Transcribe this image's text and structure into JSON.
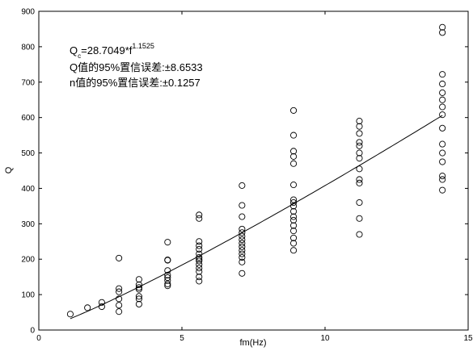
{
  "chart_data": {
    "type": "scatter",
    "title": "",
    "xlabel": "fm(Hz)",
    "ylabel": "Q",
    "xlim": [
      0,
      15
    ],
    "ylim": [
      0,
      900
    ],
    "xticks": [
      0,
      5,
      10,
      15
    ],
    "yticks": [
      0,
      100,
      200,
      300,
      400,
      500,
      600,
      700,
      800,
      900
    ],
    "grid": false,
    "legend": "none",
    "annotations": {
      "equation_prefix": "Q",
      "equation_sub": "c",
      "equation_body": "=28.7049*f",
      "equation_exponent": "1.1525",
      "q_conf": "Q值的95%置信误差:±8.6533",
      "n_conf": "n值的95%置信误差:±0.1257"
    },
    "fit": {
      "formula": "Q=28.7049*f^1.1525",
      "a": 28.7049,
      "n": 1.1525,
      "x_range": [
        1.1,
        14.1
      ]
    },
    "series": [
      {
        "type": "scatter",
        "points": [
          [
            1.1,
            45
          ],
          [
            1.7,
            63
          ],
          [
            2.2,
            66
          ],
          [
            2.2,
            78
          ],
          [
            2.8,
            203
          ],
          [
            2.8,
            117
          ],
          [
            2.8,
            108
          ],
          [
            2.8,
            88
          ],
          [
            2.8,
            70
          ],
          [
            2.8,
            52
          ],
          [
            3.5,
            143
          ],
          [
            3.5,
            128
          ],
          [
            3.5,
            120
          ],
          [
            3.5,
            115
          ],
          [
            3.5,
            95
          ],
          [
            3.5,
            88
          ],
          [
            3.5,
            73
          ],
          [
            4.5,
            248
          ],
          [
            4.5,
            198
          ],
          [
            4.5,
            197
          ],
          [
            4.5,
            168
          ],
          [
            4.5,
            155
          ],
          [
            4.5,
            148
          ],
          [
            4.5,
            140
          ],
          [
            4.5,
            130
          ],
          [
            4.5,
            125
          ],
          [
            5.6,
            325
          ],
          [
            5.6,
            315
          ],
          [
            5.6,
            250
          ],
          [
            5.6,
            238
          ],
          [
            5.6,
            228
          ],
          [
            5.6,
            215
          ],
          [
            5.6,
            205
          ],
          [
            5.6,
            200
          ],
          [
            5.6,
            195
          ],
          [
            5.6,
            185
          ],
          [
            5.6,
            175
          ],
          [
            5.6,
            165
          ],
          [
            5.6,
            150
          ],
          [
            5.6,
            138
          ],
          [
            7.1,
            408
          ],
          [
            7.1,
            352
          ],
          [
            7.1,
            320
          ],
          [
            7.1,
            285
          ],
          [
            7.1,
            275
          ],
          [
            7.1,
            265
          ],
          [
            7.1,
            255
          ],
          [
            7.1,
            245
          ],
          [
            7.1,
            235
          ],
          [
            7.1,
            225
          ],
          [
            7.1,
            215
          ],
          [
            7.1,
            205
          ],
          [
            7.1,
            192
          ],
          [
            7.1,
            160
          ],
          [
            8.9,
            620
          ],
          [
            8.9,
            550
          ],
          [
            8.9,
            505
          ],
          [
            8.9,
            490
          ],
          [
            8.9,
            470
          ],
          [
            8.9,
            410
          ],
          [
            8.9,
            368
          ],
          [
            8.9,
            360
          ],
          [
            8.9,
            350
          ],
          [
            8.9,
            335
          ],
          [
            8.9,
            320
          ],
          [
            8.9,
            310
          ],
          [
            8.9,
            295
          ],
          [
            8.9,
            280
          ],
          [
            8.9,
            260
          ],
          [
            8.9,
            245
          ],
          [
            8.9,
            225
          ],
          [
            11.2,
            590
          ],
          [
            11.2,
            575
          ],
          [
            11.2,
            555
          ],
          [
            11.2,
            530
          ],
          [
            11.2,
            520
          ],
          [
            11.2,
            500
          ],
          [
            11.2,
            485
          ],
          [
            11.2,
            455
          ],
          [
            11.2,
            425
          ],
          [
            11.2,
            415
          ],
          [
            11.2,
            360
          ],
          [
            11.2,
            315
          ],
          [
            11.2,
            270
          ],
          [
            14.1,
            855
          ],
          [
            14.1,
            840
          ],
          [
            14.1,
            722
          ],
          [
            14.1,
            695
          ],
          [
            14.1,
            670
          ],
          [
            14.1,
            650
          ],
          [
            14.1,
            630
          ],
          [
            14.1,
            608
          ],
          [
            14.1,
            570
          ],
          [
            14.1,
            525
          ],
          [
            14.1,
            500
          ],
          [
            14.1,
            475
          ],
          [
            14.1,
            435
          ],
          [
            14.1,
            425
          ],
          [
            14.1,
            395
          ]
        ]
      }
    ]
  }
}
